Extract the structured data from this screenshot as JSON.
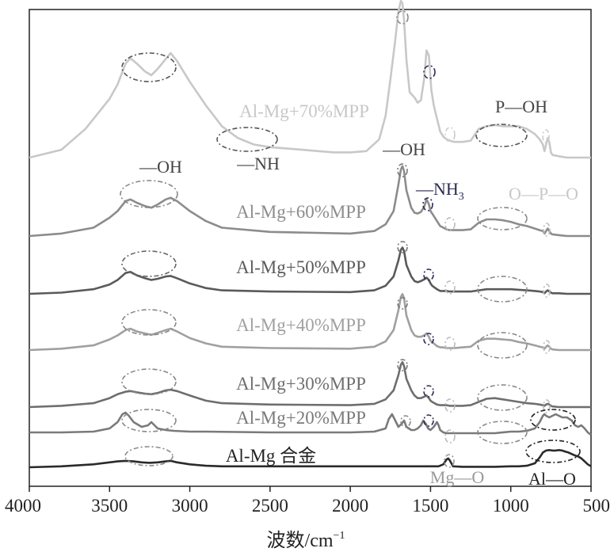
{
  "chart_data": {
    "type": "line",
    "xlabel": "波数/cm",
    "xlabel_sup": "−1",
    "xlim": [
      4000,
      500
    ],
    "x_reversed": true,
    "x_ticks": [
      4000,
      3500,
      3000,
      2500,
      2000,
      1500,
      1000,
      500
    ],
    "y_ticks": [],
    "grid": false,
    "series": [
      {
        "name": "Al-Mg+70%MPP",
        "color": "#c8c8c8",
        "x": [
          4000,
          3800,
          3650,
          3500,
          3450,
          3400,
          3370,
          3330,
          3280,
          3240,
          3200,
          3160,
          3120,
          3080,
          3000,
          2900,
          2800,
          2700,
          2600,
          2500,
          2400,
          2300,
          2200,
          2100,
          2000,
          1900,
          1820,
          1780,
          1750,
          1720,
          1700,
          1685,
          1675,
          1665,
          1650,
          1630,
          1600,
          1580,
          1560,
          1540,
          1525,
          1510,
          1495,
          1480,
          1460,
          1440,
          1420,
          1400,
          1380,
          1350,
          1300,
          1250,
          1200,
          1150,
          1100,
          1050,
          1000,
          950,
          900,
          850,
          820,
          800,
          790,
          780,
          770,
          760,
          750,
          740,
          700,
          650,
          600,
          550,
          500
        ],
        "y": [
          0.0,
          0.06,
          0.22,
          0.45,
          0.56,
          0.72,
          0.76,
          0.72,
          0.66,
          0.63,
          0.68,
          0.74,
          0.8,
          0.74,
          0.58,
          0.4,
          0.24,
          0.15,
          0.1,
          0.08,
          0.07,
          0.06,
          0.05,
          0.04,
          0.04,
          0.05,
          0.14,
          0.32,
          0.6,
          0.9,
          1.12,
          1.2,
          1.18,
          1.05,
          0.75,
          0.5,
          0.46,
          0.42,
          0.44,
          0.6,
          0.82,
          0.78,
          0.52,
          0.4,
          0.3,
          0.2,
          0.16,
          0.14,
          0.13,
          0.12,
          0.12,
          0.13,
          0.22,
          0.24,
          0.25,
          0.24,
          0.24,
          0.24,
          0.22,
          0.18,
          0.14,
          0.1,
          0.05,
          0.1,
          0.15,
          0.12,
          0.04,
          0.02,
          0.01,
          0.0,
          0.0,
          0.0,
          0.0
        ]
      },
      {
        "name": "Al-Mg+60%MPP",
        "color": "#8c8c8c",
        "x": [
          4000,
          3800,
          3600,
          3500,
          3450,
          3400,
          3370,
          3330,
          3280,
          3240,
          3200,
          3150,
          3120,
          3080,
          3000,
          2900,
          2800,
          2500,
          2000,
          1850,
          1780,
          1730,
          1700,
          1685,
          1675,
          1665,
          1650,
          1620,
          1600,
          1580,
          1560,
          1540,
          1525,
          1510,
          1500,
          1490,
          1460,
          1440,
          1420,
          1400,
          1380,
          1350,
          1300,
          1250,
          1200,
          1150,
          1100,
          1050,
          1000,
          950,
          900,
          850,
          820,
          800,
          790,
          780,
          770,
          760,
          750,
          740,
          700,
          650,
          600,
          550,
          500
        ],
        "y": [
          0.0,
          0.03,
          0.1,
          0.22,
          0.3,
          0.42,
          0.44,
          0.4,
          0.36,
          0.34,
          0.38,
          0.44,
          0.46,
          0.42,
          0.3,
          0.18,
          0.1,
          0.05,
          0.03,
          0.06,
          0.14,
          0.3,
          0.62,
          0.8,
          0.84,
          0.78,
          0.55,
          0.34,
          0.28,
          0.27,
          0.29,
          0.35,
          0.44,
          0.38,
          0.3,
          0.27,
          0.18,
          0.12,
          0.1,
          0.08,
          0.07,
          0.07,
          0.07,
          0.08,
          0.16,
          0.2,
          0.2,
          0.19,
          0.17,
          0.14,
          0.12,
          0.09,
          0.07,
          0.06,
          0.03,
          0.06,
          0.09,
          0.06,
          0.03,
          0.02,
          0.01,
          0.0,
          0.0,
          0.0,
          0.0
        ]
      },
      {
        "name": "Al-Mg+50%MPP",
        "color": "#5a5a5a",
        "x": [
          4000,
          3800,
          3600,
          3500,
          3450,
          3400,
          3370,
          3330,
          3280,
          3240,
          3200,
          3150,
          3120,
          3080,
          3000,
          2900,
          2800,
          2500,
          2000,
          1850,
          1780,
          1730,
          1700,
          1685,
          1675,
          1665,
          1650,
          1620,
          1600,
          1580,
          1560,
          1540,
          1525,
          1510,
          1500,
          1490,
          1460,
          1440,
          1420,
          1400,
          1380,
          1350,
          1300,
          1250,
          1200,
          1150,
          1100,
          1050,
          1000,
          950,
          900,
          850,
          820,
          800,
          790,
          780,
          770,
          760,
          750,
          740,
          700,
          650,
          600,
          550,
          500
        ],
        "y": [
          0.0,
          0.02,
          0.08,
          0.16,
          0.24,
          0.36,
          0.38,
          0.32,
          0.27,
          0.24,
          0.26,
          0.3,
          0.31,
          0.27,
          0.18,
          0.1,
          0.06,
          0.04,
          0.03,
          0.06,
          0.14,
          0.3,
          0.58,
          0.76,
          0.8,
          0.74,
          0.5,
          0.3,
          0.22,
          0.2,
          0.22,
          0.25,
          0.28,
          0.24,
          0.18,
          0.14,
          0.08,
          0.05,
          0.05,
          0.05,
          0.04,
          0.04,
          0.04,
          0.04,
          0.06,
          0.08,
          0.08,
          0.08,
          0.08,
          0.07,
          0.06,
          0.05,
          0.04,
          0.03,
          0.01,
          0.04,
          0.06,
          0.04,
          0.02,
          0.01,
          0.01,
          0.0,
          0.0,
          0.0,
          0.0
        ]
      },
      {
        "name": "Al-Mg+40%MPP",
        "color": "#a0a0a0",
        "x": [
          4000,
          3800,
          3600,
          3500,
          3450,
          3400,
          3370,
          3330,
          3280,
          3240,
          3200,
          3150,
          3120,
          3080,
          3000,
          2900,
          2800,
          2500,
          2000,
          1850,
          1780,
          1730,
          1700,
          1685,
          1675,
          1665,
          1650,
          1620,
          1600,
          1580,
          1560,
          1540,
          1525,
          1510,
          1500,
          1490,
          1460,
          1440,
          1420,
          1400,
          1380,
          1350,
          1300,
          1250,
          1200,
          1150,
          1100,
          1050,
          1000,
          950,
          900,
          850,
          820,
          800,
          790,
          780,
          770,
          760,
          750,
          740,
          700,
          650,
          600,
          550,
          500
        ],
        "y": [
          0.0,
          0.02,
          0.07,
          0.16,
          0.22,
          0.3,
          0.32,
          0.28,
          0.25,
          0.23,
          0.26,
          0.3,
          0.32,
          0.28,
          0.18,
          0.1,
          0.05,
          0.03,
          0.02,
          0.05,
          0.13,
          0.3,
          0.6,
          0.8,
          0.84,
          0.78,
          0.52,
          0.3,
          0.22,
          0.2,
          0.2,
          0.22,
          0.25,
          0.2,
          0.14,
          0.12,
          0.06,
          0.04,
          0.04,
          0.03,
          0.03,
          0.03,
          0.04,
          0.05,
          0.14,
          0.17,
          0.17,
          0.16,
          0.15,
          0.12,
          0.1,
          0.07,
          0.05,
          0.04,
          0.02,
          0.05,
          0.07,
          0.05,
          0.02,
          0.01,
          0.0,
          0.0,
          0.0,
          0.0,
          0.0
        ]
      },
      {
        "name": "Al-Mg+30%MPP",
        "color": "#6e6e6e",
        "x": [
          4000,
          3800,
          3600,
          3500,
          3450,
          3400,
          3370,
          3330,
          3280,
          3240,
          3200,
          3150,
          3120,
          3080,
          3000,
          2900,
          2800,
          2500,
          2000,
          1850,
          1780,
          1730,
          1700,
          1685,
          1675,
          1665,
          1650,
          1620,
          1600,
          1580,
          1560,
          1540,
          1525,
          1510,
          1500,
          1490,
          1460,
          1440,
          1420,
          1400,
          1380,
          1350,
          1300,
          1250,
          1200,
          1150,
          1100,
          1050,
          1000,
          950,
          900,
          850,
          820,
          800,
          790,
          780,
          770,
          760,
          750,
          740,
          700,
          650,
          600,
          550,
          500
        ],
        "y": [
          0.0,
          0.02,
          0.06,
          0.14,
          0.2,
          0.24,
          0.25,
          0.23,
          0.21,
          0.2,
          0.22,
          0.26,
          0.27,
          0.25,
          0.18,
          0.1,
          0.06,
          0.04,
          0.03,
          0.05,
          0.12,
          0.26,
          0.5,
          0.66,
          0.7,
          0.64,
          0.44,
          0.26,
          0.18,
          0.14,
          0.14,
          0.16,
          0.18,
          0.14,
          0.1,
          0.08,
          0.04,
          0.03,
          0.03,
          0.03,
          0.02,
          0.02,
          0.02,
          0.03,
          0.08,
          0.13,
          0.14,
          0.12,
          0.1,
          0.08,
          0.06,
          0.05,
          0.04,
          0.03,
          0.02,
          0.04,
          0.05,
          0.04,
          0.02,
          0.01,
          0.0,
          0.0,
          0.0,
          0.0,
          0.0
        ]
      },
      {
        "name": "Al-Mg+20%MPP",
        "color": "#7a7a7a",
        "x": [
          4000,
          3800,
          3600,
          3500,
          3450,
          3420,
          3400,
          3380,
          3350,
          3300,
          3260,
          3240,
          3220,
          3200,
          3150,
          3100,
          3000,
          2900,
          2500,
          2000,
          1850,
          1780,
          1760,
          1740,
          1725,
          1700,
          1680,
          1665,
          1650,
          1620,
          1600,
          1580,
          1560,
          1545,
          1530,
          1515,
          1500,
          1480,
          1460,
          1450,
          1440,
          1420,
          1400,
          1350,
          1300,
          1200,
          1100,
          1000,
          950,
          900,
          850,
          820,
          800,
          790,
          780,
          760,
          740,
          720,
          700,
          680,
          650,
          620,
          600,
          580,
          560,
          540,
          520,
          500
        ],
        "y": [
          0.05,
          0.05,
          0.06,
          0.1,
          0.18,
          0.28,
          0.3,
          0.26,
          0.18,
          0.12,
          0.14,
          0.18,
          0.14,
          0.1,
          0.08,
          0.07,
          0.06,
          0.06,
          0.05,
          0.05,
          0.06,
          0.1,
          0.22,
          0.28,
          0.22,
          0.12,
          0.16,
          0.2,
          0.12,
          0.08,
          0.08,
          0.1,
          0.14,
          0.2,
          0.16,
          0.1,
          0.08,
          0.12,
          0.18,
          0.14,
          0.08,
          0.05,
          0.04,
          0.04,
          0.04,
          0.04,
          0.04,
          0.06,
          0.06,
          0.07,
          0.1,
          0.18,
          0.26,
          0.28,
          0.26,
          0.24,
          0.26,
          0.28,
          0.26,
          0.24,
          0.24,
          0.2,
          0.14,
          0.12,
          0.14,
          0.1,
          0.05,
          0.02
        ]
      },
      {
        "name": "Al-Mg 合金",
        "color": "#2a2a2a",
        "x": [
          4000,
          3800,
          3600,
          3500,
          3450,
          3400,
          3350,
          3300,
          3250,
          3200,
          3150,
          3120,
          3080,
          3000,
          2900,
          2800,
          2500,
          2000,
          1800,
          1600,
          1450,
          1420,
          1400,
          1390,
          1380,
          1360,
          1300,
          1200,
          1100,
          1000,
          950,
          900,
          850,
          820,
          800,
          780,
          760,
          740,
          720,
          700,
          680,
          660,
          640,
          620,
          600,
          580,
          560,
          540,
          520,
          500
        ],
        "y": [
          0.0,
          0.02,
          0.06,
          0.1,
          0.12,
          0.13,
          0.12,
          0.1,
          0.09,
          0.1,
          0.12,
          0.13,
          0.1,
          0.06,
          0.03,
          0.02,
          0.02,
          0.02,
          0.02,
          0.02,
          0.02,
          0.06,
          0.16,
          0.18,
          0.14,
          0.02,
          0.01,
          0.01,
          0.01,
          0.02,
          0.02,
          0.03,
          0.08,
          0.2,
          0.3,
          0.34,
          0.35,
          0.34,
          0.34,
          0.35,
          0.34,
          0.32,
          0.3,
          0.27,
          0.24,
          0.22,
          0.18,
          0.12,
          0.06,
          0.02
        ]
      }
    ],
    "series_labels": [
      "Al-Mg+70%MPP",
      "Al-Mg+60%MPP",
      "Al-Mg+50%MPP",
      "Al-Mg+40%MPP",
      "Al-Mg+30%MPP",
      "Al-Mg+20%MPP",
      "Al-Mg 合金"
    ],
    "annotations": [
      {
        "text": "P—OH",
        "color": "#444444"
      },
      {
        "text": "—NH",
        "color": "#444444"
      },
      {
        "text": "—OH",
        "color": "#444444"
      },
      {
        "text": "—OH",
        "color": "#444444"
      },
      {
        "text": "—NH",
        "sub": "3",
        "color": "#2a2a55"
      },
      {
        "text": "O—P—O",
        "color": "#c8c8c8"
      },
      {
        "text": "Mg—O",
        "color": "#9a9a9a"
      },
      {
        "text": "Al—O",
        "color": "#222222"
      }
    ]
  }
}
